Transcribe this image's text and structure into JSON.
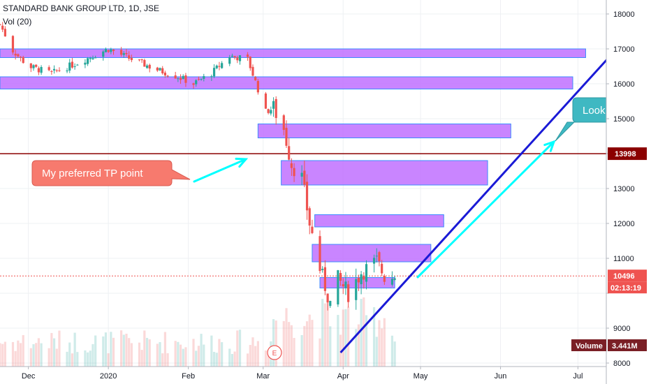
{
  "header": {
    "symbol_line": "STANDARD BANK GROUP LTD, 1D, JSE",
    "volume_indicator": "Vol (20)"
  },
  "colors": {
    "up": "#26a69a",
    "down": "#ef5350",
    "zone_fill": "#c070ff",
    "zone_border": "#3d8bff",
    "trendline": "#1a1ad6",
    "arrow": "#00ffff",
    "level_line": "#8b0000",
    "tp_callout": "#f77a6e",
    "look_callout": "#3fb8c2"
  },
  "chart_data": {
    "type": "candlestick",
    "ylim": [
      7900,
      18400
    ],
    "y_ticks": [
      8000,
      9000,
      10000,
      11000,
      12000,
      13000,
      14000,
      15000,
      16000,
      17000,
      18000
    ],
    "y_tick_labels": [
      "8000",
      "9000",
      "",
      "11000",
      "12000",
      "13000",
      "",
      "15000",
      "16000",
      "17000",
      "18000"
    ],
    "x_labels": [
      "Dec",
      "2020",
      "Feb",
      "Mar",
      "Apr",
      "May",
      "Jun",
      "Jul"
    ],
    "x_label_dates": [
      "2019-12-01",
      "2020-01-01",
      "2020-02-01",
      "2020-03-01",
      "2020-04-01",
      "2020-05-01",
      "2020-06-01",
      "2020-07-01"
    ],
    "x_range": [
      "2019-11-20",
      "2020-07-12"
    ],
    "last_price": 10496,
    "countdown": "02:13:19",
    "volume_label": "Volume",
    "volume_value": "3.441M",
    "horizontal_level": {
      "value": 13998,
      "label": "13998"
    },
    "price_path": [
      {
        "date": "2019-11-20",
        "close": 17700
      },
      {
        "date": "2019-11-25",
        "close": 16950
      },
      {
        "date": "2019-12-01",
        "close": 16500
      },
      {
        "date": "2019-12-10",
        "close": 16300
      },
      {
        "date": "2019-12-20",
        "close": 16600
      },
      {
        "date": "2020-01-01",
        "close": 17000
      },
      {
        "date": "2020-01-10",
        "close": 16700
      },
      {
        "date": "2020-01-20",
        "close": 16400
      },
      {
        "date": "2020-01-28",
        "close": 16200
      },
      {
        "date": "2020-02-03",
        "close": 16000
      },
      {
        "date": "2020-02-10",
        "close": 16300
      },
      {
        "date": "2020-02-17",
        "close": 16800
      },
      {
        "date": "2020-02-24",
        "close": 16700
      },
      {
        "date": "2020-03-02",
        "close": 15200
      },
      {
        "date": "2020-03-05",
        "close": 15300
      },
      {
        "date": "2020-03-09",
        "close": 14700
      },
      {
        "date": "2020-03-12",
        "close": 13700
      },
      {
        "date": "2020-03-16",
        "close": 13300
      },
      {
        "date": "2020-03-19",
        "close": 12000
      },
      {
        "date": "2020-03-23",
        "close": 10700
      },
      {
        "date": "2020-03-27",
        "close": 9700
      },
      {
        "date": "2020-03-30",
        "close": 10400
      },
      {
        "date": "2020-04-03",
        "close": 10000
      },
      {
        "date": "2020-04-08",
        "close": 10600
      },
      {
        "date": "2020-04-14",
        "close": 10900
      },
      {
        "date": "2020-04-17",
        "close": 10500
      },
      {
        "date": "2020-04-21",
        "close": 10496
      }
    ],
    "zones": [
      {
        "from": "2019-11-20",
        "to": "2020-07-04",
        "low": 16750,
        "high": 17000
      },
      {
        "from": "2019-11-20",
        "to": "2020-06-29",
        "low": 15850,
        "high": 16200
      },
      {
        "from": "2020-02-28",
        "to": "2020-06-05",
        "low": 14450,
        "high": 14850
      },
      {
        "from": "2020-03-08",
        "to": "2020-05-27",
        "low": 13100,
        "high": 13800
      },
      {
        "from": "2020-03-21",
        "to": "2020-05-10",
        "low": 11900,
        "high": 12250
      },
      {
        "from": "2020-03-20",
        "to": "2020-05-05",
        "low": 10900,
        "high": 11400
      },
      {
        "from": "2020-03-23",
        "to": "2020-04-21",
        "low": 10150,
        "high": 10450
      }
    ],
    "trendline": {
      "from": {
        "date": "2020-03-31",
        "value": 8300
      },
      "to": {
        "date": "2020-07-16",
        "value": 17000
      }
    },
    "annotations": [
      {
        "text": "My preferred TP point"
      },
      {
        "text": "Look"
      }
    ]
  }
}
